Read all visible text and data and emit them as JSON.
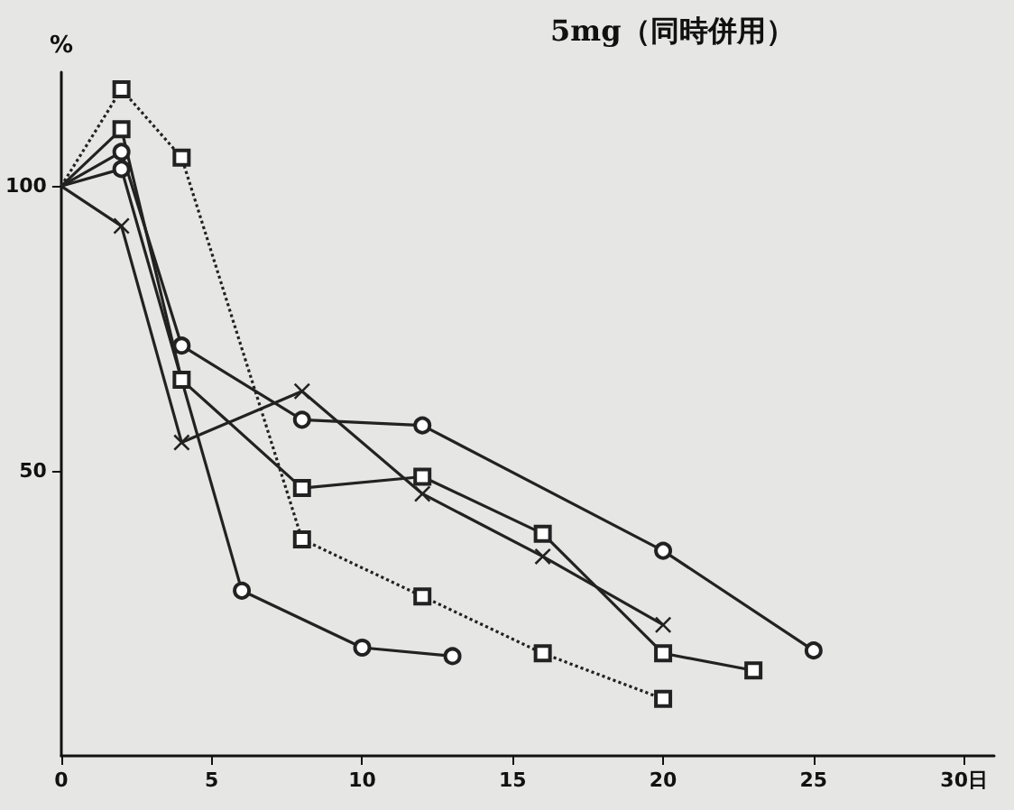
{
  "chart_data": {
    "type": "line",
    "title": "5mg（同時併用）",
    "ylabel": "%",
    "xlim": [
      0,
      31
    ],
    "xticks": [
      0,
      5,
      10,
      15,
      20,
      25,
      {
        "value": 30,
        "label": "30日"
      }
    ],
    "ylim": [
      0,
      120
    ],
    "yticks": [
      50,
      100
    ],
    "grid": false,
    "series": [
      {
        "color": "#222222",
        "marker": "circle",
        "line_style": "solid",
        "x": [
          0,
          2,
          6,
          10,
          13
        ],
        "values": [
          100,
          103,
          29,
          19,
          17.5
        ]
      },
      {
        "color": "#222222",
        "marker": "circle",
        "line_style": "solid",
        "x": [
          0,
          2,
          4,
          8,
          12,
          20,
          25
        ],
        "values": [
          100,
          106,
          72,
          59,
          58,
          36,
          18.5
        ]
      },
      {
        "color": "#222222",
        "marker": "square",
        "line_style": "solid",
        "x": [
          0,
          2,
          4,
          8,
          12,
          16,
          20,
          23
        ],
        "values": [
          100,
          110,
          66,
          47,
          49,
          39,
          18,
          15
        ]
      },
      {
        "color": "#222222",
        "marker": "cross",
        "line_style": "solid",
        "x": [
          0,
          2,
          4,
          8,
          12,
          16,
          20
        ],
        "values": [
          100,
          93,
          55,
          64,
          46,
          35,
          23
        ]
      },
      {
        "color": "#222222",
        "marker": "square",
        "line_style": "dotted",
        "x": [
          0,
          2,
          4,
          8,
          12,
          16,
          20
        ],
        "values": [
          100,
          117,
          105,
          38,
          28,
          18,
          10
        ]
      }
    ]
  }
}
